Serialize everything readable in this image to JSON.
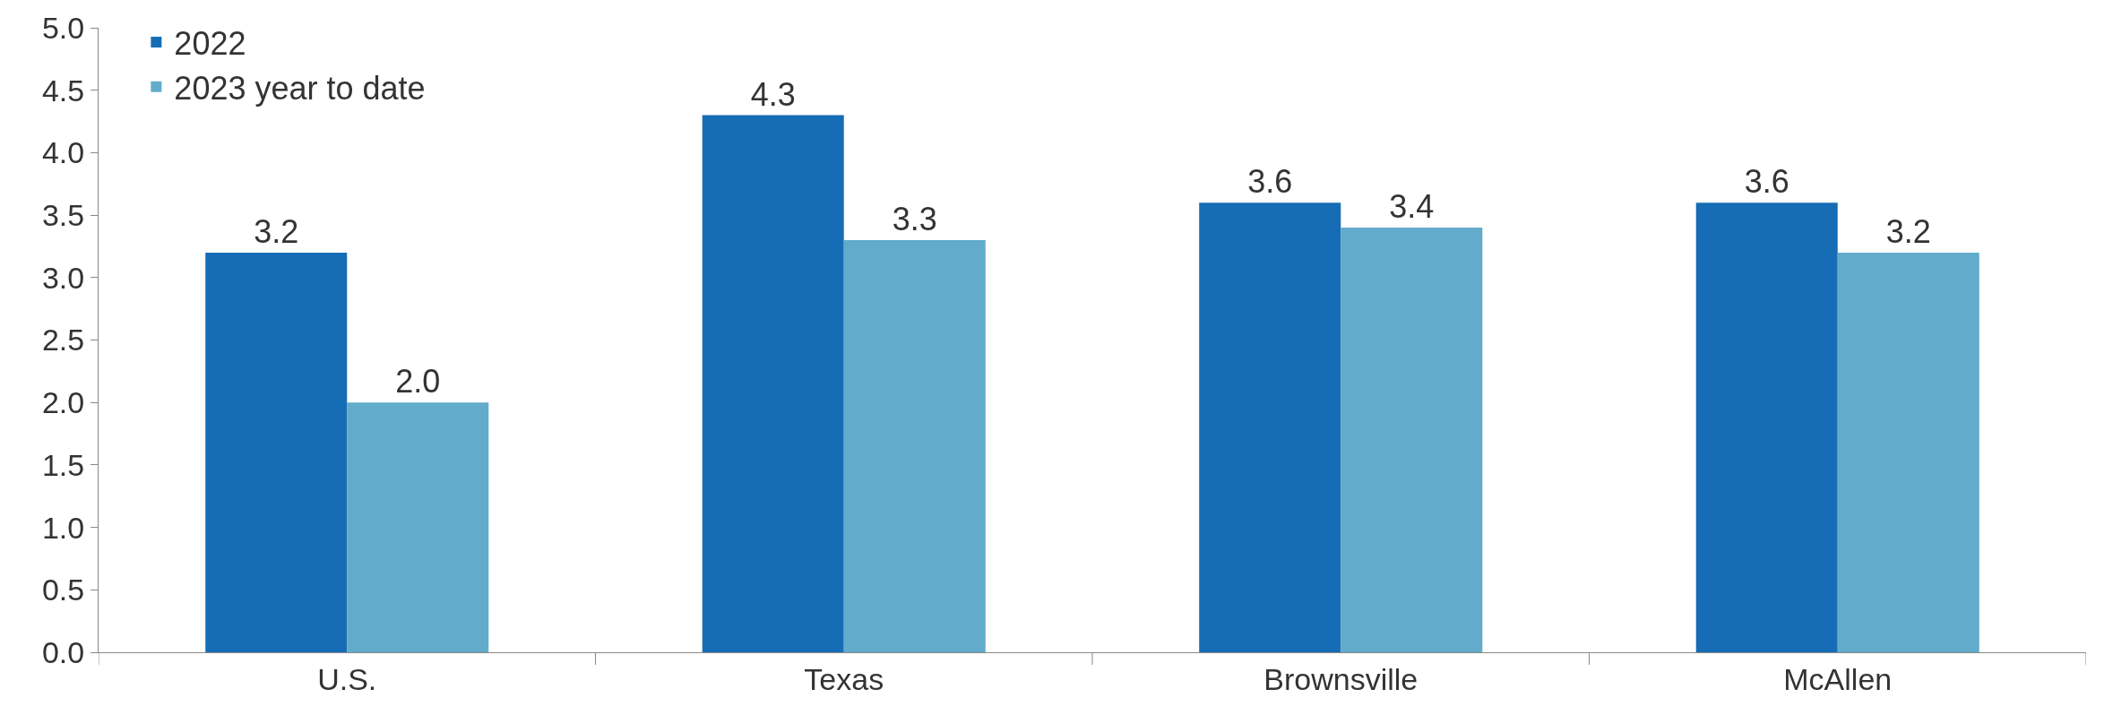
{
  "chart_data": {
    "type": "bar",
    "categories": [
      "U.S.",
      "Texas",
      "Brownsville",
      "McAllen"
    ],
    "series": [
      {
        "name": "2022",
        "color": "#176db5",
        "values": [
          3.2,
          4.3,
          3.6,
          3.6
        ],
        "value_labels": [
          "3.2",
          "4.3",
          "3.6",
          "3.6"
        ]
      },
      {
        "name": "2023 year to date",
        "color": "#62abcb",
        "values": [
          2.0,
          3.3,
          3.4,
          3.2
        ],
        "value_labels": [
          "2.0",
          "3.3",
          "3.4",
          "3.2"
        ]
      }
    ],
    "ylim": [
      0,
      5
    ],
    "yticks": [
      {
        "value": 0,
        "label": "0.0"
      },
      {
        "value": 0.5,
        "label": "0.5"
      },
      {
        "value": 1,
        "label": "1.0"
      },
      {
        "value": 1.5,
        "label": "1.5"
      },
      {
        "value": 2,
        "label": "2.0"
      },
      {
        "value": 2.5,
        "label": "2.5"
      },
      {
        "value": 3,
        "label": "3.0"
      },
      {
        "value": 3.5,
        "label": "3.5"
      },
      {
        "value": 4,
        "label": "4.0"
      },
      {
        "value": 4.5,
        "label": "4.5"
      },
      {
        "value": 5,
        "label": "5.0"
      }
    ],
    "legend": "top left",
    "grid": false
  }
}
